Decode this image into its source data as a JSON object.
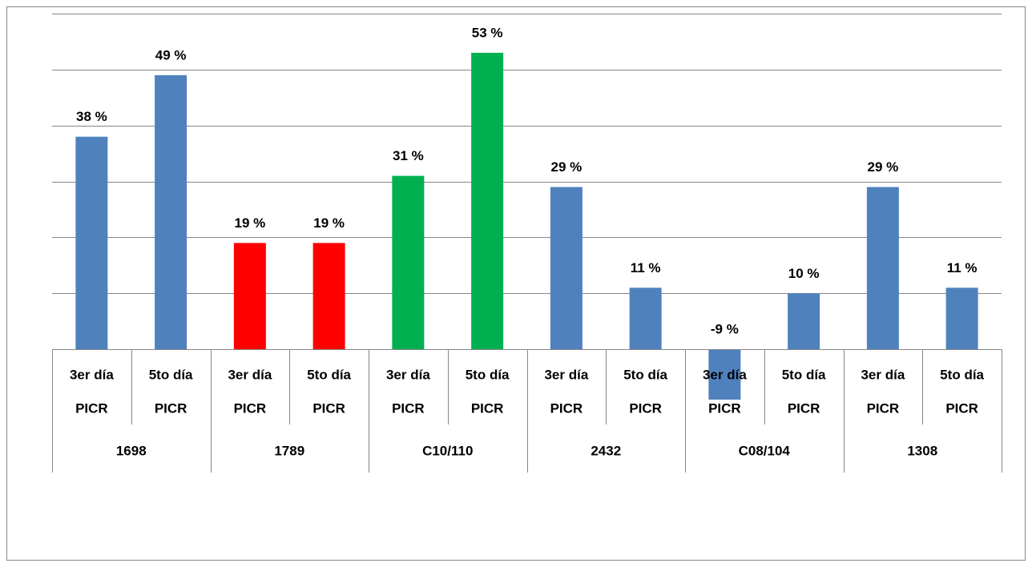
{
  "chart_data": {
    "type": "bar",
    "categories": [
      "3er día",
      "5to día",
      "3er día",
      "5to día",
      "3er día",
      "5to día",
      "3er día",
      "5to día",
      "3er día",
      "5to día",
      "3er día",
      "5to día"
    ],
    "subcategories": [
      "PICR",
      "PICR",
      "PICR",
      "PICR",
      "PICR",
      "PICR",
      "PICR",
      "PICR",
      "PICR",
      "PICR",
      "PICR",
      "PICR"
    ],
    "groups": [
      "1698",
      "1789",
      "C10/110",
      "2432",
      "C08/104",
      "1308"
    ],
    "values": [
      38,
      49,
      19,
      19,
      31,
      53,
      29,
      11,
      -9,
      10,
      29,
      11
    ],
    "value_labels": [
      "38 %",
      "49 %",
      "19 %",
      "19 %",
      "31 %",
      "53 %",
      "29 %",
      "11 %",
      "-9 %",
      "10 %",
      "29 %",
      "11 %"
    ],
    "colors": [
      "#4f81bd",
      "#4f81bd",
      "#ff0000",
      "#ff0000",
      "#00b050",
      "#00b050",
      "#4f81bd",
      "#4f81bd",
      "#4f81bd",
      "#4f81bd",
      "#4f81bd",
      "#4f81bd"
    ],
    "ylim": [
      -10,
      60
    ],
    "yticks": [
      0,
      10,
      20,
      30,
      40,
      50,
      60
    ],
    "grid": true
  }
}
